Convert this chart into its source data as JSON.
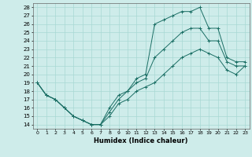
{
  "xlabel": "Humidex (Indice chaleur)",
  "ylabel": "",
  "background_color": "#ceecea",
  "grid_color": "#a8d8d4",
  "line_color": "#1a6e64",
  "xlim": [
    -0.5,
    23.5
  ],
  "ylim": [
    13.5,
    28.5
  ],
  "xticks": [
    0,
    1,
    2,
    3,
    4,
    5,
    6,
    7,
    8,
    9,
    10,
    11,
    12,
    13,
    14,
    15,
    16,
    17,
    18,
    19,
    20,
    21,
    22,
    23
  ],
  "yticks": [
    14,
    15,
    16,
    17,
    18,
    19,
    20,
    21,
    22,
    23,
    24,
    25,
    26,
    27,
    28
  ],
  "series": [
    {
      "x": [
        0,
        1,
        2,
        3,
        4,
        5,
        6,
        7,
        8,
        9,
        10,
        11,
        12,
        13,
        14,
        15,
        16,
        17,
        18,
        19,
        20,
        21,
        22,
        23
      ],
      "y": [
        19,
        17.5,
        17,
        16,
        15,
        14.5,
        14,
        14,
        16,
        17.5,
        18,
        19.5,
        20,
        26,
        26.5,
        27,
        27.5,
        27.5,
        28,
        25.5,
        25.5,
        22,
        21.5,
        21.5
      ]
    },
    {
      "x": [
        0,
        1,
        2,
        3,
        4,
        5,
        6,
        7,
        8,
        9,
        10,
        11,
        12,
        13,
        14,
        15,
        16,
        17,
        18,
        19,
        20,
        21,
        22,
        23
      ],
      "y": [
        19,
        17.5,
        17,
        16,
        15,
        14.5,
        14,
        14,
        15.5,
        17,
        18,
        19,
        19.5,
        22,
        23,
        24,
        25,
        25.5,
        25.5,
        24,
        24,
        21.5,
        21,
        21
      ]
    },
    {
      "x": [
        0,
        1,
        2,
        3,
        4,
        5,
        6,
        7,
        8,
        9,
        10,
        11,
        12,
        13,
        14,
        15,
        16,
        17,
        18,
        19,
        20,
        21,
        22,
        23
      ],
      "y": [
        19,
        17.5,
        17,
        16,
        15,
        14.5,
        14,
        14,
        15,
        16.5,
        17,
        18,
        18.5,
        19,
        20,
        21,
        22,
        22.5,
        23,
        22.5,
        22,
        20.5,
        20,
        21
      ]
    }
  ]
}
